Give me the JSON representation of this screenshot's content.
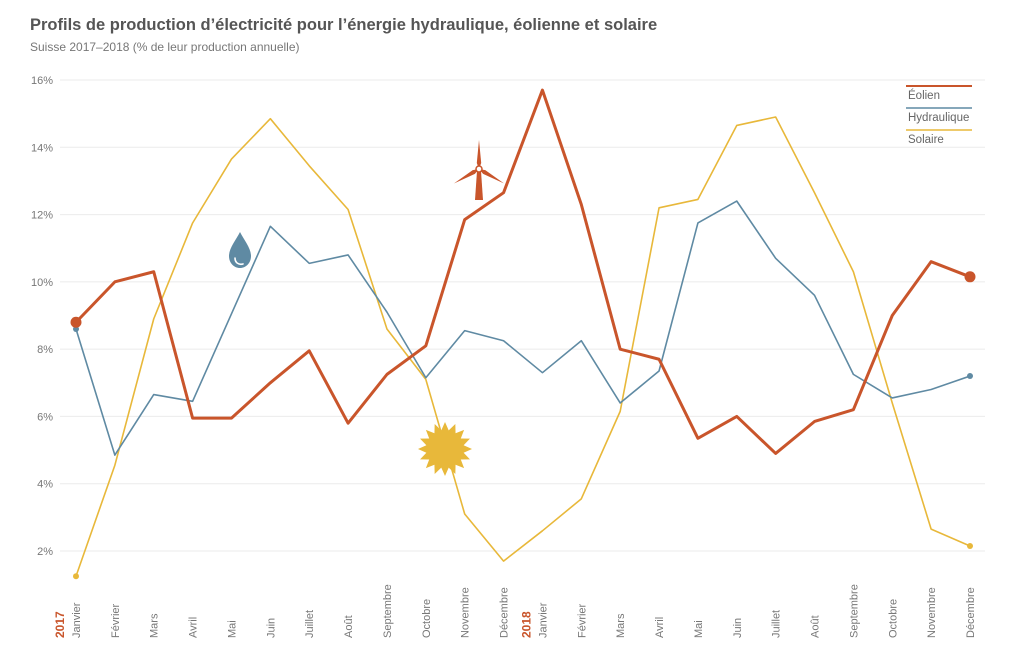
{
  "header": {
    "title": "Profils de production d’électricité pour l’énergie hydraulique, éolienne et solaire",
    "subtitle": "Suisse 2017–2018 (% de leur production annuelle)"
  },
  "colors": {
    "eolien": "#c9552b",
    "hydraulique": "#5f8aa3",
    "solaire": "#e8b83a"
  },
  "chart_data": {
    "type": "line",
    "title": "Profils de production d’électricité pour l’énergie hydraulique, éolienne et solaire",
    "subtitle": "Suisse 2017–2018 (% de leur production annuelle)",
    "xlabel": "",
    "ylabel": "",
    "ylim": [
      1,
      16
    ],
    "yticks": [
      "2%",
      "4%",
      "6%",
      "8%",
      "10%",
      "12%",
      "14%",
      "16%"
    ],
    "ytick_values": [
      2,
      4,
      6,
      8,
      10,
      12,
      14,
      16
    ],
    "years": [
      {
        "label": "2017",
        "index": 0
      },
      {
        "label": "2018",
        "index": 12
      }
    ],
    "categories": [
      "Janvier",
      "Février",
      "Mars",
      "Avril",
      "Mai",
      "Juin",
      "Juillet",
      "Août",
      "Septembre",
      "Octobre",
      "Novembre",
      "Décembre",
      "Janvier",
      "Février",
      "Mars",
      "Avril",
      "Mai",
      "Juin",
      "Juillet",
      "Août",
      "Septembre",
      "Octobre",
      "Novembre",
      "Décembre"
    ],
    "legend_position": "top-right",
    "series": [
      {
        "name": "Éolien",
        "key": "eolien",
        "values": [
          8.8,
          10.0,
          10.3,
          5.95,
          5.95,
          7.0,
          7.95,
          5.8,
          7.25,
          8.1,
          11.85,
          12.65,
          15.7,
          12.3,
          8.0,
          7.7,
          5.35,
          6.0,
          4.9,
          5.85,
          6.2,
          9.0,
          10.6,
          10.15
        ]
      },
      {
        "name": "Hydraulique",
        "key": "hydraulique",
        "values": [
          8.6,
          4.85,
          6.65,
          6.45,
          9.05,
          11.65,
          10.55,
          10.8,
          9.1,
          7.15,
          8.55,
          8.25,
          7.3,
          8.25,
          6.4,
          7.35,
          11.75,
          12.4,
          10.7,
          9.6,
          7.25,
          6.55,
          6.8,
          7.2
        ]
      },
      {
        "name": "Solaire",
        "key": "solaire",
        "values": [
          1.25,
          4.55,
          8.9,
          11.75,
          13.65,
          14.85,
          13.45,
          12.15,
          8.6,
          7.1,
          3.1,
          1.7,
          2.6,
          3.55,
          6.15,
          12.2,
          12.45,
          14.65,
          14.9,
          12.65,
          10.3,
          6.4,
          2.65,
          2.15
        ]
      }
    ],
    "annotations": [
      "water-drop-icon",
      "wind-turbine-icon",
      "sun-icon"
    ]
  }
}
